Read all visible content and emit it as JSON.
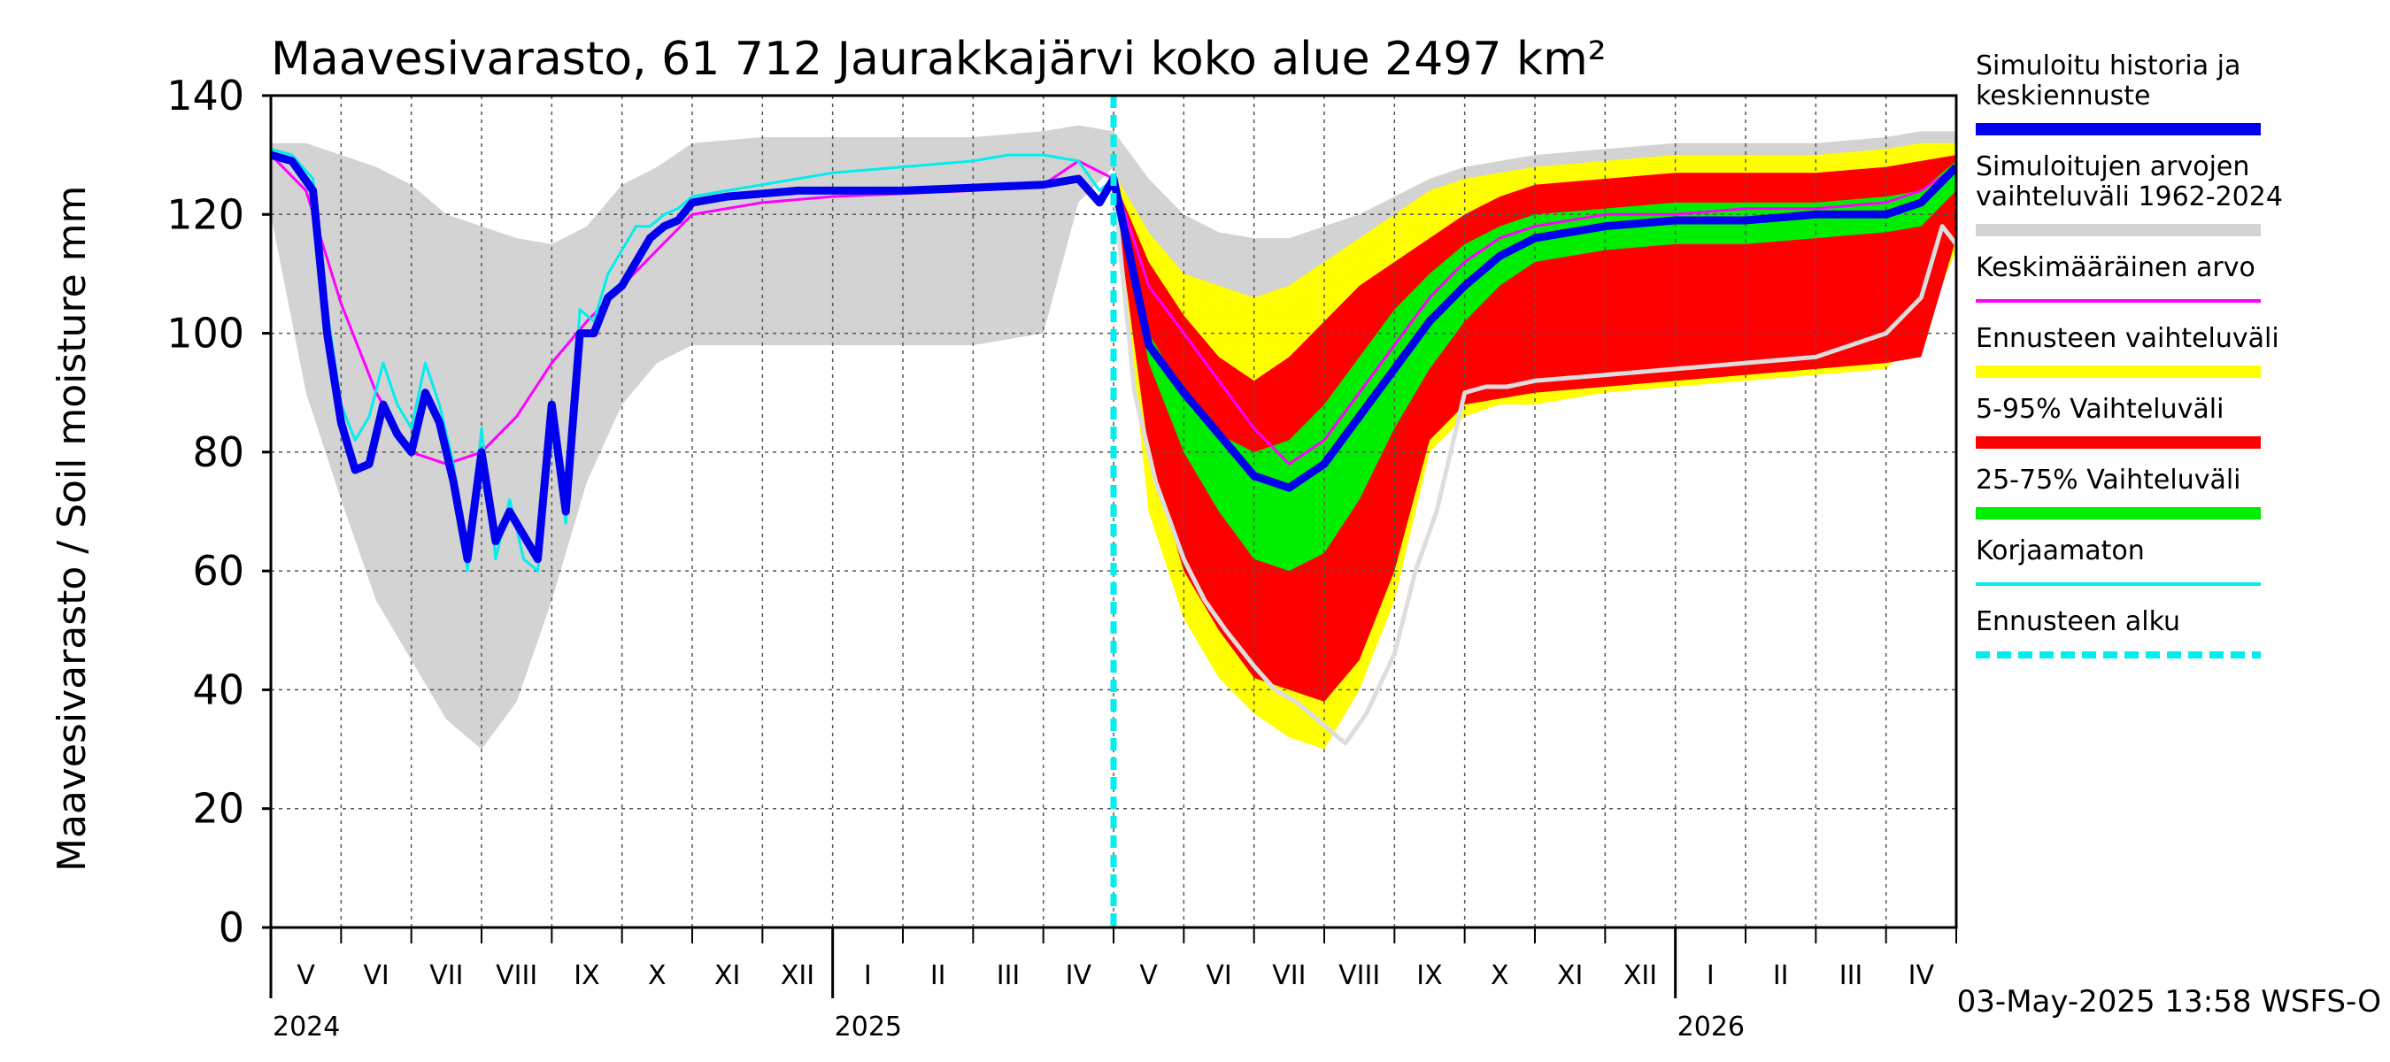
{
  "chart_data": {
    "type": "area",
    "title": "Maavesivarasto, 61 712 Jaurakkajärvi koko alue 2497 km²",
    "ylabel": "Maavesivarasto / Soil moisture   mm",
    "xlabel": "",
    "ylim": [
      0,
      140
    ],
    "yticks": [
      "0",
      "20",
      "40",
      "60",
      "80",
      "100",
      "120",
      "140"
    ],
    "grid": true,
    "legend_position": "right",
    "footer": "03-May-2025 13:58 WSFS-O",
    "x_axis": {
      "years": [
        {
          "label": "2024",
          "month_index": 0
        },
        {
          "label": "2025",
          "month_index": 8
        },
        {
          "label": "2026",
          "month_index": 20
        }
      ],
      "months": [
        "V",
        "VI",
        "VII",
        "VIII",
        "IX",
        "X",
        "XI",
        "XII",
        "I",
        "II",
        "III",
        "IV",
        "V",
        "VI",
        "VII",
        "VIII",
        "IX",
        "X",
        "XI",
        "XII",
        "I",
        "II",
        "III",
        "IV"
      ]
    },
    "forecast_start_month": 12.0,
    "legend": [
      {
        "label_lines": [
          "Simuloitu historia ja",
          "keskiennuste"
        ],
        "color": "#0000ee",
        "style": "thick"
      },
      {
        "label_lines": [
          "Simuloitujen arvojen",
          "vaihteluväli 1962-2024"
        ],
        "color": "#d3d3d3",
        "style": "thick"
      },
      {
        "label_lines": [
          "Keskimääräinen arvo"
        ],
        "color": "#ff00ff",
        "style": "thin"
      },
      {
        "label_lines": [
          "Ennusteen vaihteluväli"
        ],
        "color": "#ffff00",
        "style": "thick"
      },
      {
        "label_lines": [
          "5-95% Vaihteluväli"
        ],
        "color": "#ff0000",
        "style": "thick"
      },
      {
        "label_lines": [
          "25-75% Vaihteluväli"
        ],
        "color": "#00ee00",
        "style": "thick"
      },
      {
        "label_lines": [
          "Korjaamaton"
        ],
        "color": "#00eeee",
        "style": "thin"
      },
      {
        "label_lines": [
          "Ennusteen alku"
        ],
        "color": "#00eeee",
        "style": "dashed"
      }
    ],
    "series": [
      {
        "name": "Simuloitujen arvojen vaihteluväli 1962-2024",
        "kind": "band",
        "color": "#d3d3d3",
        "x": [
          0,
          0.5,
          1,
          1.5,
          2,
          2.5,
          3,
          3.5,
          4,
          4.5,
          5,
          5.5,
          6,
          7,
          8,
          9,
          10,
          11,
          11.5,
          12,
          12.5,
          13,
          13.5,
          14,
          14.5,
          15,
          15.5,
          16,
          16.5,
          17,
          17.5,
          18,
          19,
          20,
          21,
          22,
          23,
          23.5,
          24
        ],
        "upper": [
          132,
          132,
          130,
          128,
          125,
          120,
          118,
          116,
          115,
          118,
          125,
          128,
          132,
          133,
          133,
          133,
          133,
          134,
          135,
          134,
          126,
          120,
          117,
          116,
          116,
          118,
          120,
          123,
          126,
          128,
          129,
          130,
          131,
          132,
          132,
          132,
          133,
          134,
          134
        ],
        "lower": [
          120,
          90,
          72,
          55,
          45,
          35,
          30,
          38,
          55,
          75,
          88,
          95,
          98,
          98,
          98,
          98,
          98,
          100,
          122,
          128,
          95,
          80,
          60,
          45,
          35,
          30,
          40,
          75,
          85,
          88,
          90,
          90,
          92,
          93,
          94,
          95,
          96,
          108,
          125
        ]
      },
      {
        "name": "Ennusteen vaihteluväli",
        "kind": "band",
        "color": "#ffff00",
        "x": [
          12,
          12.5,
          13,
          13.5,
          14,
          14.5,
          15,
          15.5,
          16,
          16.5,
          17,
          17.5,
          18,
          19,
          20,
          21,
          22,
          23,
          23.5,
          24
        ],
        "upper": [
          127,
          117,
          110,
          108,
          106,
          108,
          112,
          116,
          120,
          124,
          126,
          127,
          128,
          129,
          130,
          130,
          130,
          131,
          132,
          132
        ],
        "lower": [
          125,
          70,
          52,
          42,
          36,
          32,
          30,
          40,
          55,
          80,
          86,
          88,
          88,
          90,
          91,
          92,
          93,
          94,
          100,
          114
        ]
      },
      {
        "name": "5-95% Vaihteluväli",
        "kind": "band",
        "color": "#ff0000",
        "x": [
          12,
          12.5,
          13,
          13.5,
          14,
          14.5,
          15,
          15.5,
          16,
          16.5,
          17,
          17.5,
          18,
          19,
          20,
          21,
          22,
          23,
          23.5,
          24
        ],
        "upper": [
          126,
          112,
          103,
          96,
          92,
          96,
          102,
          108,
          112,
          116,
          120,
          123,
          125,
          126,
          127,
          127,
          127,
          128,
          129,
          130
        ],
        "lower": [
          124,
          80,
          60,
          50,
          42,
          40,
          38,
          45,
          60,
          82,
          88,
          89,
          90,
          91,
          92,
          93,
          94,
          95,
          96,
          116
        ]
      },
      {
        "name": "25-75% Vaihteluväli",
        "kind": "band",
        "color": "#00ee00",
        "x": [
          12,
          12.5,
          13,
          13.5,
          14,
          14.5,
          15,
          15.5,
          16,
          16.5,
          17,
          17.5,
          18,
          19,
          20,
          21,
          22,
          23,
          23.5,
          24
        ],
        "upper": [
          125,
          100,
          90,
          83,
          80,
          82,
          88,
          96,
          104,
          110,
          115,
          118,
          120,
          121,
          122,
          122,
          122,
          123,
          124,
          129
        ],
        "lower": [
          124,
          95,
          80,
          70,
          62,
          60,
          63,
          72,
          84,
          94,
          102,
          108,
          112,
          114,
          115,
          115,
          116,
          117,
          118,
          124
        ]
      },
      {
        "name": "Simuloitu historia ja keskiennuste",
        "kind": "line",
        "color": "#0000ee",
        "width": 9,
        "x": [
          0,
          0.3,
          0.6,
          0.8,
          1,
          1.2,
          1.4,
          1.6,
          1.8,
          2,
          2.2,
          2.4,
          2.6,
          2.8,
          3,
          3.2,
          3.4,
          3.6,
          3.8,
          4,
          4.2,
          4.4,
          4.6,
          4.8,
          5,
          5.2,
          5.4,
          5.6,
          5.8,
          6,
          6.5,
          7,
          7.5,
          8,
          9,
          10,
          11,
          11.5,
          11.8,
          12,
          12.5,
          13,
          13.5,
          14,
          14.5,
          15,
          15.5,
          16,
          16.5,
          17,
          17.5,
          18,
          19,
          20,
          21,
          22,
          23,
          23.5,
          24
        ],
        "y": [
          130,
          129,
          124,
          100,
          85,
          77,
          78,
          88,
          83,
          80,
          90,
          85,
          75,
          62,
          80,
          65,
          70,
          66,
          62,
          88,
          70,
          100,
          100,
          106,
          108,
          112,
          116,
          118,
          119,
          122,
          123,
          123.5,
          124,
          124,
          124,
          124.5,
          125,
          126,
          122,
          126,
          98,
          90,
          83,
          76,
          74,
          78,
          86,
          94,
          102,
          108,
          113,
          116,
          118,
          119,
          119,
          120,
          120,
          122,
          128
        ]
      },
      {
        "name": "Korjaamaton",
        "kind": "line",
        "color": "#00eeee",
        "width": 3,
        "x": [
          0,
          0.3,
          0.6,
          0.8,
          1,
          1.2,
          1.4,
          1.6,
          1.8,
          2,
          2.2,
          2.4,
          2.6,
          2.8,
          3,
          3.2,
          3.4,
          3.6,
          3.8,
          4,
          4.2,
          4.4,
          4.6,
          4.8,
          5,
          5.2,
          5.4,
          5.6,
          5.8,
          6,
          6.5,
          7,
          7.5,
          8,
          9,
          10,
          10.5,
          11,
          11.5,
          11.8,
          12
        ],
        "y": [
          131,
          130,
          126,
          104,
          88,
          82,
          86,
          95,
          88,
          84,
          95,
          88,
          78,
          60,
          84,
          62,
          72,
          62,
          60,
          84,
          68,
          104,
          102,
          110,
          114,
          118,
          118,
          120,
          121,
          123,
          124,
          125,
          126,
          127,
          128,
          129,
          130,
          130,
          129,
          124,
          126
        ]
      },
      {
        "name": "Keskimääräinen arvo",
        "kind": "line",
        "color": "#ff00ff",
        "width": 3,
        "x": [
          0,
          0.5,
          1,
          1.5,
          2,
          2.5,
          3,
          3.5,
          4,
          4.5,
          5,
          5.5,
          6,
          7,
          8,
          9,
          10,
          11,
          11.5,
          12,
          12.5,
          13,
          13.5,
          14,
          14.5,
          15,
          15.5,
          16,
          16.5,
          17,
          17.5,
          18,
          19,
          20,
          21,
          22,
          23,
          23.5,
          24
        ],
        "y": [
          130,
          124,
          105,
          90,
          80,
          78,
          80,
          86,
          95,
          102,
          108,
          114,
          120,
          122,
          123,
          123.5,
          124,
          125,
          129,
          126,
          108,
          100,
          92,
          84,
          78,
          82,
          90,
          98,
          106,
          112,
          116,
          118,
          120,
          120,
          121,
          121,
          122,
          124,
          128
        ]
      },
      {
        "name": "",
        "kind": "line",
        "color": "#dddddd",
        "width": 5,
        "x": [
          12,
          12.3,
          12.6,
          13,
          13.3,
          13.6,
          14,
          14.3,
          14.6,
          15,
          15.3,
          15.6,
          16,
          16.3,
          16.6,
          17,
          17.3,
          17.6,
          18,
          19,
          20,
          21,
          22,
          23,
          23.5,
          23.8,
          24
        ],
        "y": [
          125,
          90,
          75,
          62,
          55,
          50,
          44,
          40,
          38,
          34,
          31,
          36,
          46,
          60,
          70,
          90,
          91,
          91,
          92,
          93,
          94,
          95,
          96,
          100,
          106,
          118,
          115
        ]
      }
    ]
  }
}
